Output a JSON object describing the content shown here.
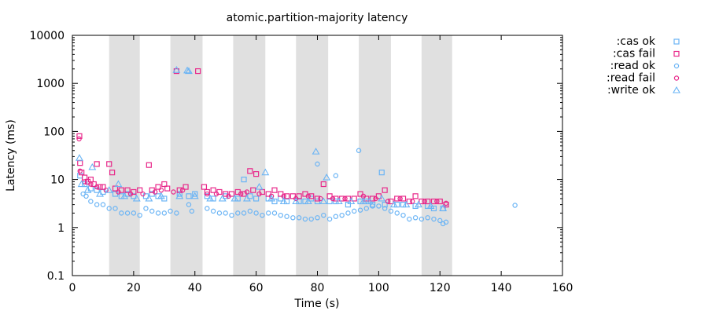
{
  "chart_data": {
    "type": "scatter",
    "title": "atomic.partition-majority latency",
    "xlabel": "Time (s)",
    "ylabel": "Latency (ms)",
    "xlim": [
      0,
      160
    ],
    "ylim": [
      0.1,
      10000
    ],
    "y_scale": "log",
    "x_ticks": [
      "0",
      "20",
      "40",
      "60",
      "80",
      "100",
      "120",
      "140",
      "160"
    ],
    "y_ticks": [
      "0.1",
      "1",
      "10",
      "100",
      "1000",
      "10000"
    ],
    "grid": false,
    "legend_position": "outside-top-right",
    "shaded_intervals": [
      [
        12,
        22
      ],
      [
        32,
        42.5
      ],
      [
        52.5,
        63
      ],
      [
        73,
        83.5
      ],
      [
        93.5,
        104
      ],
      [
        114,
        124
      ]
    ],
    "series": [
      {
        "name": ":cas ok",
        "marker": "square",
        "color": "#6ab4f5",
        "points": [
          [
            2.5,
            12
          ],
          [
            4,
            8
          ],
          [
            6,
            6.5
          ],
          [
            8,
            6
          ],
          [
            10,
            5.5
          ],
          [
            14,
            5
          ],
          [
            16,
            4.5
          ],
          [
            18,
            5
          ],
          [
            20,
            4.5
          ],
          [
            24,
            4.5
          ],
          [
            26,
            5
          ],
          [
            28,
            4.5
          ],
          [
            30,
            4
          ],
          [
            35,
            5
          ],
          [
            38,
            4.5
          ],
          [
            40,
            5
          ],
          [
            44,
            4.5
          ],
          [
            46,
            4
          ],
          [
            50,
            4.5
          ],
          [
            54,
            4
          ],
          [
            56,
            10
          ],
          [
            58,
            4.5
          ],
          [
            60,
            4
          ],
          [
            64,
            4
          ],
          [
            66,
            3.5
          ],
          [
            68,
            4
          ],
          [
            70,
            3.5
          ],
          [
            74,
            3.5
          ],
          [
            76,
            3.5
          ],
          [
            78,
            4
          ],
          [
            80,
            3.5
          ],
          [
            84,
            3.5
          ],
          [
            86,
            3.5
          ],
          [
            90,
            3
          ],
          [
            94,
            3.5
          ],
          [
            96,
            3.5
          ],
          [
            98,
            3
          ],
          [
            101,
            14
          ],
          [
            102,
            3
          ],
          [
            106,
            3
          ],
          [
            108,
            3
          ],
          [
            112,
            2.8
          ],
          [
            116,
            2.8
          ],
          [
            118,
            2.5
          ],
          [
            121,
            2.5
          ]
        ]
      },
      {
        "name": ":cas fail",
        "marker": "square",
        "color": "#e8288a",
        "points": [
          [
            2.3,
            80
          ],
          [
            2.5,
            22
          ],
          [
            3,
            14
          ],
          [
            4,
            11
          ],
          [
            5,
            9
          ],
          [
            6,
            10
          ],
          [
            7,
            8
          ],
          [
            8,
            21
          ],
          [
            9,
            7
          ],
          [
            10,
            7
          ],
          [
            12,
            21
          ],
          [
            13,
            14
          ],
          [
            14,
            6.5
          ],
          [
            16,
            6
          ],
          [
            18,
            6
          ],
          [
            20,
            5.5
          ],
          [
            22,
            6
          ],
          [
            25,
            20
          ],
          [
            26,
            6
          ],
          [
            28,
            7
          ],
          [
            30,
            8
          ],
          [
            31,
            6.5
          ],
          [
            34,
            1800
          ],
          [
            35,
            6
          ],
          [
            37,
            7
          ],
          [
            41,
            1800
          ],
          [
            43,
            7
          ],
          [
            44,
            5.5
          ],
          [
            46,
            6
          ],
          [
            48,
            5.5
          ],
          [
            50,
            5
          ],
          [
            52,
            5
          ],
          [
            54,
            5.5
          ],
          [
            56,
            5
          ],
          [
            58,
            15
          ],
          [
            59,
            6
          ],
          [
            60,
            13
          ],
          [
            62,
            5.5
          ],
          [
            64,
            5
          ],
          [
            66,
            6
          ],
          [
            68,
            5
          ],
          [
            70,
            4.5
          ],
          [
            72,
            4.5
          ],
          [
            74,
            4.5
          ],
          [
            76,
            5
          ],
          [
            78,
            4.5
          ],
          [
            80,
            4
          ],
          [
            82,
            8
          ],
          [
            84,
            4.5
          ],
          [
            86,
            4
          ],
          [
            88,
            4
          ],
          [
            90,
            4
          ],
          [
            92,
            4
          ],
          [
            94,
            5
          ],
          [
            96,
            4
          ],
          [
            98,
            4
          ],
          [
            100,
            4.5
          ],
          [
            102,
            6
          ],
          [
            104,
            3.5
          ],
          [
            106,
            4
          ],
          [
            108,
            4
          ],
          [
            110,
            3.5
          ],
          [
            112,
            4.5
          ],
          [
            114,
            3.5
          ],
          [
            116,
            3.5
          ],
          [
            118,
            3.5
          ],
          [
            120,
            3.5
          ],
          [
            122,
            3
          ]
        ]
      },
      {
        "name": ":read ok",
        "marker": "circle",
        "color": "#6ab4f5",
        "points": [
          [
            3.5,
            5
          ],
          [
            4.5,
            4.5
          ],
          [
            6,
            3.5
          ],
          [
            8,
            3
          ],
          [
            10,
            3
          ],
          [
            12,
            2.5
          ],
          [
            14,
            2.5
          ],
          [
            16,
            2
          ],
          [
            18,
            2
          ],
          [
            20,
            2
          ],
          [
            22,
            1.8
          ],
          [
            24,
            2.5
          ],
          [
            26,
            2.2
          ],
          [
            28,
            2
          ],
          [
            30,
            2
          ],
          [
            32,
            2.2
          ],
          [
            34,
            2
          ],
          [
            38,
            3
          ],
          [
            39,
            2.2
          ],
          [
            44,
            2.5
          ],
          [
            46,
            2.2
          ],
          [
            48,
            2
          ],
          [
            50,
            2
          ],
          [
            52,
            1.8
          ],
          [
            54,
            2
          ],
          [
            56,
            2
          ],
          [
            58,
            2.2
          ],
          [
            60,
            2
          ],
          [
            62,
            1.8
          ],
          [
            64,
            2
          ],
          [
            66,
            2
          ],
          [
            68,
            1.8
          ],
          [
            70,
            1.7
          ],
          [
            72,
            1.6
          ],
          [
            74,
            1.6
          ],
          [
            76,
            1.5
          ],
          [
            78,
            1.5
          ],
          [
            80,
            21
          ],
          [
            80,
            1.6
          ],
          [
            82,
            1.8
          ],
          [
            84,
            1.5
          ],
          [
            86,
            12
          ],
          [
            86,
            1.7
          ],
          [
            88,
            1.8
          ],
          [
            90,
            2
          ],
          [
            92,
            2.2
          ],
          [
            93.5,
            40
          ],
          [
            94,
            2.3
          ],
          [
            96,
            2.5
          ],
          [
            98,
            2.8
          ],
          [
            100,
            2.8
          ],
          [
            102,
            2.5
          ],
          [
            104,
            2.2
          ],
          [
            106,
            2
          ],
          [
            108,
            1.8
          ],
          [
            110,
            1.5
          ],
          [
            112,
            1.6
          ],
          [
            114,
            1.5
          ],
          [
            116,
            1.6
          ],
          [
            118,
            1.5
          ],
          [
            120,
            1.4
          ],
          [
            121,
            1.2
          ],
          [
            122,
            1.3
          ],
          [
            144.5,
            2.9
          ]
        ]
      },
      {
        "name": ":read fail",
        "marker": "circle",
        "color": "#e8288a",
        "points": [
          [
            2.2,
            70
          ],
          [
            2.5,
            15
          ],
          [
            4,
            9
          ],
          [
            6,
            8
          ],
          [
            8,
            7
          ],
          [
            11,
            6
          ],
          [
            15,
            5.5
          ],
          [
            19,
            5
          ],
          [
            23,
            5
          ],
          [
            27,
            5.5
          ],
          [
            29,
            6
          ],
          [
            33,
            5.5
          ],
          [
            36,
            6
          ],
          [
            44,
            5
          ],
          [
            47,
            5
          ],
          [
            51,
            4.5
          ],
          [
            55,
            5
          ],
          [
            57,
            5.5
          ],
          [
            61,
            5
          ],
          [
            65,
            4.5
          ],
          [
            69,
            4.5
          ],
          [
            73,
            4
          ],
          [
            77,
            4.5
          ],
          [
            81,
            4
          ],
          [
            85,
            4
          ],
          [
            89,
            4
          ],
          [
            95,
            4.5
          ],
          [
            99,
            4
          ],
          [
            103,
            3.5
          ],
          [
            107,
            4
          ],
          [
            111,
            3.5
          ],
          [
            115,
            3.5
          ],
          [
            119,
            3.5
          ],
          [
            122,
            3.2
          ]
        ]
      },
      {
        "name": ":write ok",
        "marker": "triangle",
        "color": "#6ab4f5",
        "points": [
          [
            2.3,
            28
          ],
          [
            3,
            8
          ],
          [
            5,
            6
          ],
          [
            6.5,
            18
          ],
          [
            9,
            5
          ],
          [
            12,
            6
          ],
          [
            15,
            8
          ],
          [
            17,
            4.5
          ],
          [
            21,
            4
          ],
          [
            25,
            4
          ],
          [
            29,
            4.5
          ],
          [
            34,
            1900
          ],
          [
            35,
            4.5
          ],
          [
            37.5,
            1850
          ],
          [
            38,
            1800
          ],
          [
            40,
            4.5
          ],
          [
            45,
            4
          ],
          [
            49,
            4
          ],
          [
            53,
            4
          ],
          [
            57,
            4
          ],
          [
            61,
            7
          ],
          [
            63,
            14
          ],
          [
            65,
            4
          ],
          [
            69,
            3.5
          ],
          [
            73,
            3.5
          ],
          [
            77,
            3.5
          ],
          [
            79.5,
            38
          ],
          [
            82,
            3.5
          ],
          [
            83,
            11
          ],
          [
            87,
            3.5
          ],
          [
            91,
            3.5
          ],
          [
            95,
            3.5
          ],
          [
            97,
            3.5
          ],
          [
            101,
            4
          ],
          [
            105,
            3
          ],
          [
            109,
            3
          ],
          [
            113,
            3
          ],
          [
            117,
            2.8
          ],
          [
            121,
            2.5
          ]
        ]
      }
    ]
  }
}
